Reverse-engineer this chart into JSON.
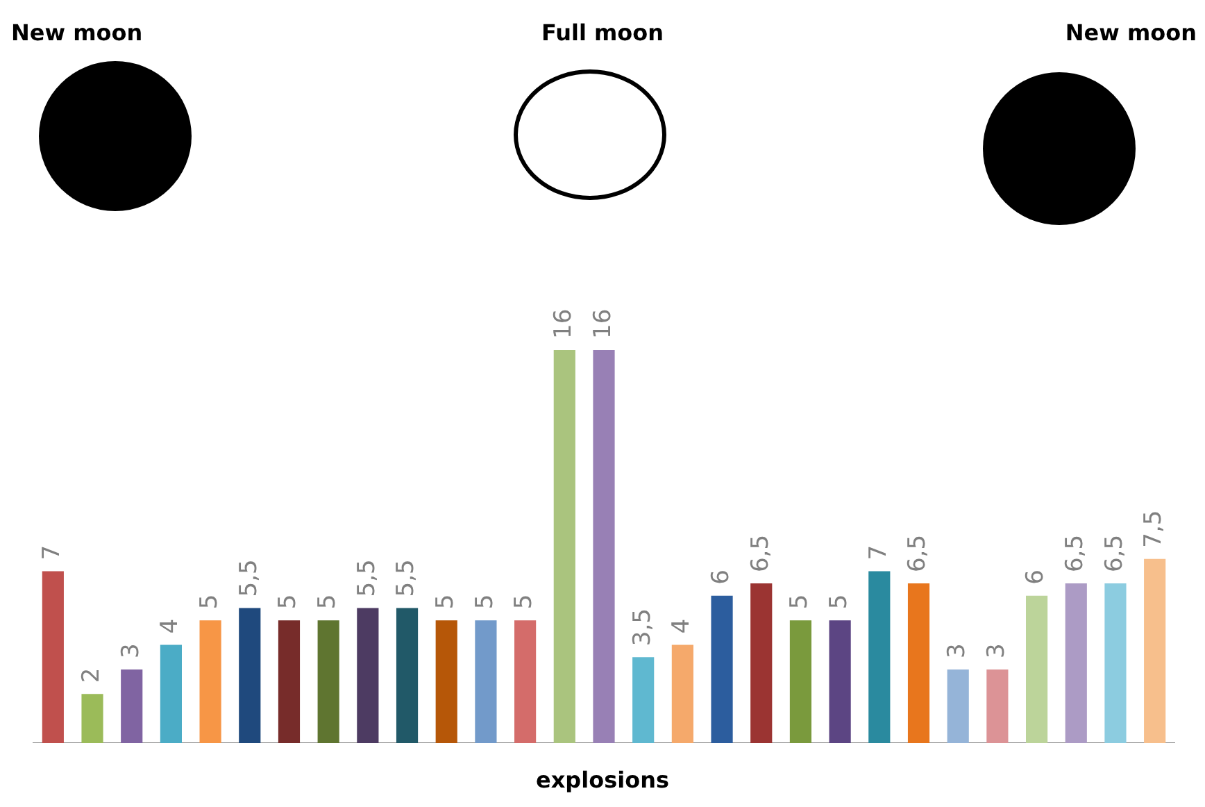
{
  "chart_data": {
    "type": "bar",
    "xlabel": "explosions",
    "annotations": [
      "New moon",
      "Full moon",
      "New moon"
    ],
    "categories": [
      null,
      null,
      null,
      null,
      null,
      null,
      null,
      null,
      null,
      null,
      null,
      null,
      null,
      null,
      null,
      null,
      null,
      null,
      null,
      null,
      null,
      null,
      null,
      null,
      null,
      null,
      null,
      null,
      null
    ],
    "values": [
      7,
      2,
      3,
      4,
      5,
      5.5,
      5,
      5,
      5.5,
      5.5,
      5,
      5,
      5,
      16,
      16,
      3.5,
      4,
      6,
      6.5,
      5,
      5,
      7,
      6.5,
      3,
      3,
      6,
      6.5,
      6.5,
      7.5
    ],
    "value_labels": [
      "7",
      "2",
      "3",
      "4",
      "5",
      "5,5",
      "5",
      "5",
      "5,5",
      "5,5",
      "5",
      "5",
      "5",
      "16",
      "16",
      "3,5",
      "4",
      "6",
      "6,5",
      "5",
      "5",
      "7",
      "6,5",
      "3",
      "3",
      "6",
      "6,5",
      "6,5",
      "7,5"
    ],
    "colors": [
      "#c0504d",
      "#9bbb59",
      "#8064a2",
      "#4bacc6",
      "#f79646",
      "#1f497d",
      "#772c2a",
      "#5f7530",
      "#4d3b62",
      "#215968",
      "#b65708",
      "#729aca",
      "#d46c6a",
      "#aac47e",
      "#9880b5",
      "#5fb8d0",
      "#f5a96b",
      "#2c5d9e",
      "#9b3432",
      "#7a9a3d",
      "#5c4583",
      "#2a8a9f",
      "#e8761d",
      "#95b4d8",
      "#dc9396",
      "#bcd49a",
      "#ac9bc5",
      "#8ccce0",
      "#f7bf8c"
    ],
    "ylim": [
      0,
      16
    ],
    "tick_labels": false,
    "grid": false,
    "legend": false
  }
}
